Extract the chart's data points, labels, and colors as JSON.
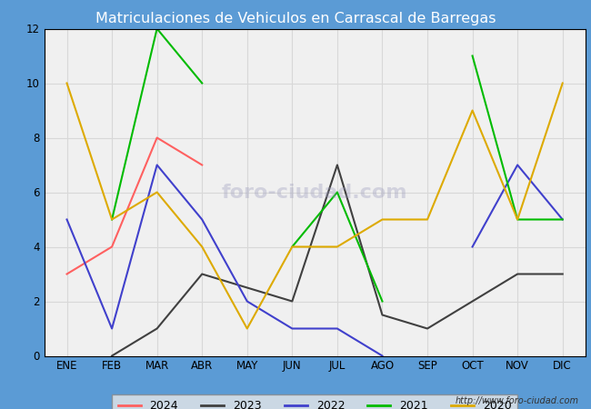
{
  "title": "Matriculaciones de Vehiculos en Carrascal de Barregas",
  "title_bg_color": "#5b9bd5",
  "title_text_color": "#ffffff",
  "months": [
    "ENE",
    "FEB",
    "MAR",
    "ABR",
    "MAY",
    "JUN",
    "JUL",
    "AGO",
    "SEP",
    "OCT",
    "NOV",
    "DIC"
  ],
  "series": {
    "2024": {
      "color": "#ff6060",
      "data": [
        3,
        4,
        8,
        7,
        null,
        null,
        null,
        null,
        null,
        null,
        null,
        null
      ]
    },
    "2023": {
      "color": "#404040",
      "data": [
        null,
        0,
        1,
        3,
        2.5,
        2,
        7,
        1.5,
        1,
        2,
        3,
        3
      ]
    },
    "2022": {
      "color": "#4040cc",
      "data": [
        5,
        1,
        7,
        5,
        2,
        1,
        1,
        0,
        null,
        4,
        7,
        5
      ]
    },
    "2021": {
      "color": "#00bb00",
      "data": [
        null,
        5,
        12,
        10,
        null,
        4,
        6,
        2,
        null,
        11,
        5,
        5
      ]
    },
    "2020": {
      "color": "#ddaa00",
      "data": [
        10,
        5,
        6,
        4,
        1,
        4,
        4,
        5,
        5,
        9,
        5,
        10
      ]
    }
  },
  "ylim": [
    0,
    12
  ],
  "yticks": [
    0,
    2,
    4,
    6,
    8,
    10,
    12
  ],
  "watermark": "http://www.foro-ciudad.com",
  "plot_bg_color": "#f0f0f0",
  "fig_bg_color": "#5b9bd5",
  "grid_color": "#d8d8d8"
}
